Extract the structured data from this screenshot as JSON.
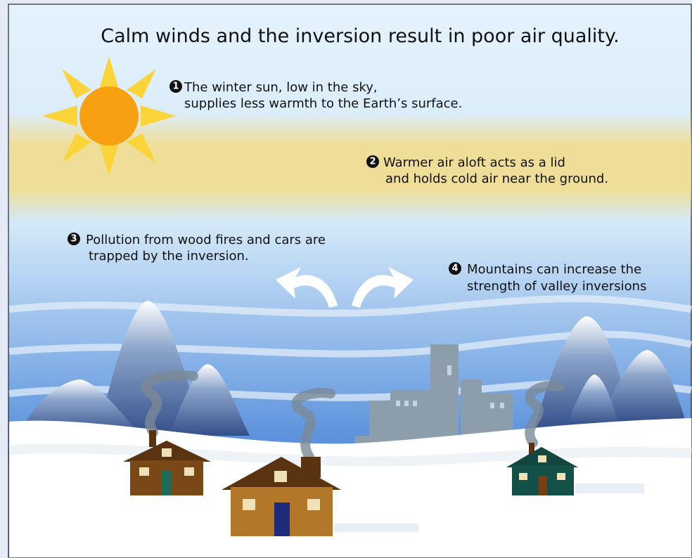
{
  "title": "Calm winds and the inversion result in poor air quality.",
  "notes": [
    {
      "number": "1",
      "lines": [
        "The winter sun, low in the sky,",
        "supplies less warmth to the Earth’s surface."
      ]
    },
    {
      "number": "2",
      "lines": [
        "Warmer air aloft acts as a lid",
        "and holds cold air near the ground."
      ]
    },
    {
      "number": "3",
      "lines": [
        "Pollution from wood fires and cars are",
        "trapped by the inversion."
      ]
    },
    {
      "number": "4",
      "lines": [
        "Mountains can increase the",
        "strength of valley inversions"
      ]
    }
  ]
}
